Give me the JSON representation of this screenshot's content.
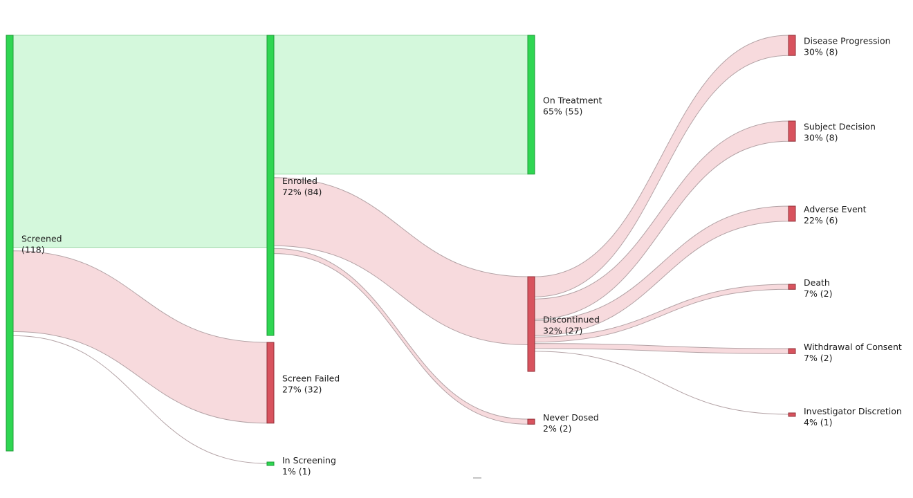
{
  "chart_data": {
    "type": "sankey",
    "colors": {
      "positive_node": "#2fd652",
      "positive_node_stroke": "#1e9a37",
      "positive_flow": "#d4f8dc",
      "positive_flow_stroke": "#9ad9a8",
      "negative_node": "#d8535e",
      "negative_node_stroke": "#8f2f37",
      "negative_flow": "#f7dadd",
      "negative_flow_stroke": "#b3a2a5"
    },
    "nodes": [
      {
        "id": "screened",
        "title": "Screened",
        "detail": "(118)",
        "value": 118,
        "tone": "positive"
      },
      {
        "id": "enrolled",
        "title": "Enrolled",
        "detail": "72% (84)",
        "value": 84,
        "tone": "positive"
      },
      {
        "id": "screen_failed",
        "title": "Screen Failed",
        "detail": "27% (32)",
        "value": 32,
        "tone": "negative"
      },
      {
        "id": "in_screening",
        "title": "In Screening",
        "detail": "1% (1)",
        "value": 1,
        "tone": "positive"
      },
      {
        "id": "on_treatment",
        "title": "On Treatment",
        "detail": "65% (55)",
        "value": 55,
        "tone": "positive"
      },
      {
        "id": "discontinued",
        "title": "Discontinued",
        "detail": "32% (27)",
        "value": 27,
        "tone": "negative"
      },
      {
        "id": "never_dosed",
        "title": "Never Dosed",
        "detail": "2% (2)",
        "value": 2,
        "tone": "negative"
      },
      {
        "id": "disease_progression",
        "title": "Disease Progression",
        "detail": "30% (8)",
        "value": 8,
        "tone": "negative"
      },
      {
        "id": "subject_decision",
        "title": "Subject Decision",
        "detail": "30% (8)",
        "value": 8,
        "tone": "negative"
      },
      {
        "id": "adverse_event",
        "title": "Adverse Event",
        "detail": "22% (6)",
        "value": 6,
        "tone": "negative"
      },
      {
        "id": "death",
        "title": "Death",
        "detail": "7% (2)",
        "value": 2,
        "tone": "negative"
      },
      {
        "id": "withdrawal_of_consent",
        "title": "Withdrawal of Consent",
        "detail": "7% (2)",
        "value": 2,
        "tone": "negative"
      },
      {
        "id": "investigator_discretion",
        "title": "Investigator Discretion",
        "detail": "4% (1)",
        "value": 1,
        "tone": "negative"
      }
    ],
    "links": [
      {
        "source": "screened",
        "target": "enrolled",
        "value": 84,
        "tone": "positive"
      },
      {
        "source": "screened",
        "target": "screen_failed",
        "value": 32,
        "tone": "negative"
      },
      {
        "source": "screened",
        "target": "in_screening",
        "value": 1,
        "tone": "neutral"
      },
      {
        "source": "enrolled",
        "target": "on_treatment",
        "value": 55,
        "tone": "positive"
      },
      {
        "source": "enrolled",
        "target": "discontinued",
        "value": 27,
        "tone": "negative"
      },
      {
        "source": "enrolled",
        "target": "never_dosed",
        "value": 2,
        "tone": "negative"
      },
      {
        "source": "discontinued",
        "target": "disease_progression",
        "value": 8,
        "tone": "negative"
      },
      {
        "source": "discontinued",
        "target": "subject_decision",
        "value": 8,
        "tone": "negative"
      },
      {
        "source": "discontinued",
        "target": "adverse_event",
        "value": 6,
        "tone": "negative"
      },
      {
        "source": "discontinued",
        "target": "death",
        "value": 2,
        "tone": "negative"
      },
      {
        "source": "discontinued",
        "target": "withdrawal_of_consent",
        "value": 2,
        "tone": "negative"
      },
      {
        "source": "discontinued",
        "target": "investigator_discretion",
        "value": 1,
        "tone": "neutral"
      }
    ]
  }
}
